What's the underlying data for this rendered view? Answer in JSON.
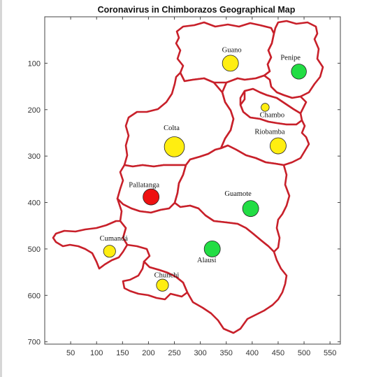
{
  "chart_data": {
    "type": "scatter",
    "title": "Coronavirus in Chimborazos Geographical Map",
    "xlabel": "",
    "ylabel": "",
    "xlim": [
      0,
      570
    ],
    "ylim": [
      0,
      705
    ],
    "y_reversed": true,
    "xticks": [
      50,
      100,
      150,
      200,
      250,
      300,
      350,
      400,
      450,
      500,
      550
    ],
    "yticks": [
      100,
      200,
      300,
      400,
      500,
      600,
      700
    ],
    "grid": false,
    "legend": "none",
    "colors": {
      "border": "#c8202a",
      "red": "#ee1111",
      "yellow": "#ffee11",
      "green": "#22dd44",
      "axis": "#444444"
    },
    "points": [
      {
        "label": "Guano",
        "x": 358,
        "y": 100,
        "r": 16,
        "status": "yellow"
      },
      {
        "label": "Penipe",
        "x": 490,
        "y": 118,
        "r": 15,
        "status": "green"
      },
      {
        "label": "Chambo",
        "x": 425,
        "y": 195,
        "r": 8,
        "status": "yellow"
      },
      {
        "label": "Colta",
        "x": 250,
        "y": 280,
        "r": 20,
        "status": "yellow"
      },
      {
        "label": "Riobamba",
        "x": 450,
        "y": 278,
        "r": 16,
        "status": "yellow"
      },
      {
        "label": "Pallatanga",
        "x": 205,
        "y": 388,
        "r": 16,
        "status": "red"
      },
      {
        "label": "Guamote",
        "x": 397,
        "y": 413,
        "r": 16,
        "status": "green"
      },
      {
        "label": "Cumandá",
        "x": 125,
        "y": 505,
        "r": 12,
        "status": "yellow"
      },
      {
        "label": "Alausí",
        "x": 323,
        "y": 500,
        "r": 16,
        "status": "green"
      },
      {
        "label": "Chunchi",
        "x": 227,
        "y": 578,
        "r": 12,
        "status": "yellow"
      }
    ]
  }
}
